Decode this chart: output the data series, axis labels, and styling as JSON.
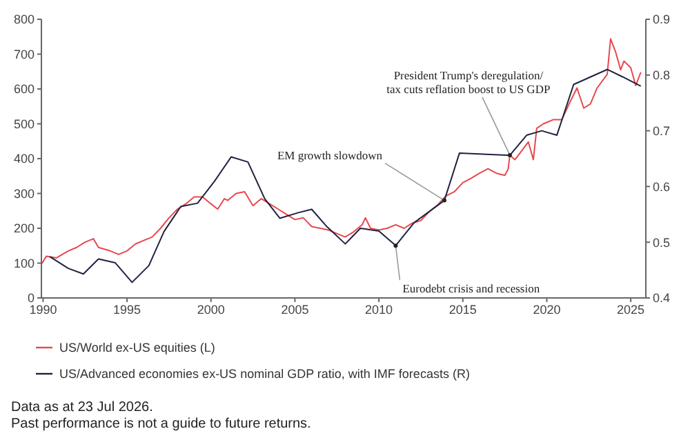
{
  "chart_data": {
    "type": "line",
    "xlim": [
      1989.9,
      2025.9
    ],
    "xticks": [
      1990,
      1995,
      2000,
      2005,
      2010,
      2015,
      2020,
      2025
    ],
    "ylim": [
      0,
      800
    ],
    "yticks": [
      0,
      100,
      200,
      300,
      400,
      500,
      600,
      700,
      800
    ],
    "y2lim": [
      0.4,
      0.9
    ],
    "y2ticks": [
      0.4,
      0.5,
      0.6,
      0.7,
      0.8,
      0.9
    ],
    "legend": "bottom",
    "series": [
      {
        "name": "US/World ex-US equities (L)",
        "color": "#e8474c",
        "x": [
          1989.9,
          1990.2,
          1990.8,
          1991.5,
          1992,
          1992.5,
          1993,
          1993.3,
          1994,
          1994.5,
          1995,
          1995.5,
          1996,
          1996.5,
          1997,
          1997.5,
          1998,
          1998.5,
          1999,
          1999.5,
          2000,
          2000.4,
          2000.8,
          2001,
          2001.5,
          2002,
          2002.5,
          2003,
          2003.5,
          2004,
          2004.5,
          2005,
          2005.5,
          2006,
          2006.5,
          2007,
          2007.5,
          2008,
          2008.5,
          2009,
          2009.2,
          2009.5,
          2010,
          2010.5,
          2011,
          2011.5,
          2012,
          2012.5,
          2013,
          2013.5,
          2014,
          2014.5,
          2015,
          2015.5,
          2016,
          2016.5,
          2017,
          2017.5,
          2017.7,
          2017.8,
          2018.1,
          2018.5,
          2018.9,
          2019.2,
          2019.4,
          2019.8,
          2020.4,
          2020.9,
          2021.4,
          2021.8,
          2022.2,
          2022.6,
          2023.0,
          2023.6,
          2023.8,
          2024.1,
          2024.4,
          2024.6,
          2025.0,
          2025.3,
          2025.6
        ],
        "values": [
          97,
          120,
          115,
          135,
          145,
          160,
          170,
          145,
          135,
          125,
          135,
          155,
          165,
          175,
          200,
          230,
          255,
          270,
          290,
          290,
          270,
          255,
          285,
          280,
          300,
          305,
          265,
          285,
          270,
          255,
          240,
          225,
          230,
          205,
          200,
          195,
          185,
          175,
          190,
          210,
          230,
          200,
          195,
          200,
          210,
          200,
          215,
          222,
          248,
          267,
          293,
          305,
          331,
          344,
          358,
          371,
          358,
          352,
          370,
          410,
          397,
          422,
          448,
          397,
          487,
          500,
          512,
          512,
          564,
          603,
          545,
          557,
          603,
          642,
          744,
          706,
          655,
          680,
          661,
          610,
          648
        ]
      },
      {
        "name": "US/Advanced economies ex-US nominal GDP ratio, with IMF forecasts (R)",
        "color": "#1f2240",
        "axis": "y2",
        "x": [
          1990.4,
          1991.5,
          1992.4,
          1993.3,
          1994.3,
          1995.3,
          1996.3,
          1997.2,
          1998.2,
          1999.2,
          2000.2,
          2001.2,
          2002.2,
          2003.2,
          2004.1,
          2005.2,
          2006.0,
          2006.9,
          2008.0,
          2008.9,
          2010.0,
          2011.0,
          2012.1,
          2013.9,
          2014.8,
          2017.8,
          2018.8,
          2019.7,
          2020.6,
          2021.6,
          2023.6,
          2024.5,
          2025.6
        ],
        "values": [
          0.474,
          0.453,
          0.443,
          0.47,
          0.463,
          0.428,
          0.458,
          0.519,
          0.564,
          0.57,
          0.609,
          0.653,
          0.644,
          0.578,
          0.543,
          0.553,
          0.559,
          0.528,
          0.497,
          0.525,
          0.52,
          0.494,
          0.535,
          0.575,
          0.66,
          0.656,
          0.692,
          0.7,
          0.692,
          0.783,
          0.81,
          0.797,
          0.78
        ]
      }
    ],
    "annotations": [
      {
        "text": "President Trump's deregulation/\ntax cuts reflation boost to US GDP",
        "x": 2017.8,
        "y": 410
      },
      {
        "text": "EM growth slowdown",
        "x": 2013.9,
        "y": 280
      },
      {
        "text": "Eurodebt crisis and recession",
        "x": 2011.0,
        "y": 150
      },
      "Data as at 23 Jul 2026.",
      "Past performance is not a guide to future returns."
    ]
  }
}
